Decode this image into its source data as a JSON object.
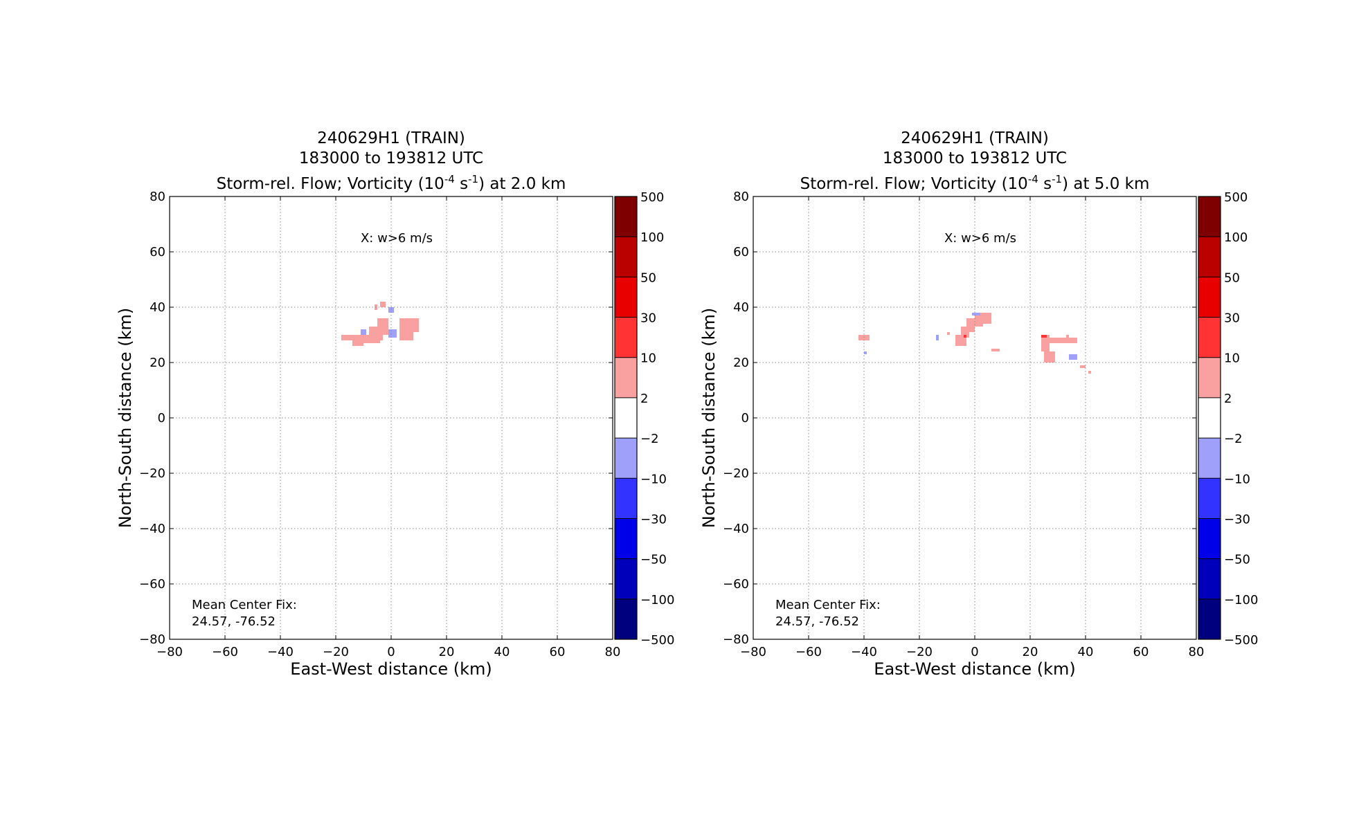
{
  "chart_data": [
    {
      "type": "heatmap",
      "title_lines": [
        "240629H1 (TRAIN)",
        "183000 to 193812 UTC"
      ],
      "title_line3": {
        "pre": "Storm-rel. Flow; Vorticity (10",
        "exp1": "-4",
        "mid": " s",
        "exp2": "-1",
        "post": ") at 2.0 km"
      },
      "xlabel": "East-West distance (km)",
      "ylabel": "North-South distance (km)",
      "xlim": [
        -80,
        80
      ],
      "ylim": [
        -80,
        80
      ],
      "xticks": [
        -80,
        -60,
        -40,
        -20,
        0,
        20,
        40,
        60,
        80
      ],
      "yticks": [
        -80,
        -60,
        -40,
        -20,
        0,
        20,
        40,
        60,
        80
      ],
      "xtick_labels": [
        "−80",
        "−60",
        "−40",
        "−20",
        "0",
        "20",
        "40",
        "60",
        "80"
      ],
      "ytick_labels": [
        "−80",
        "−60",
        "−40",
        "−20",
        "0",
        "20",
        "40",
        "60",
        "80"
      ],
      "grid": true,
      "annotation_top": "X: w>6 m/s",
      "annotation_bottom": [
        "Mean Center Fix:",
        "24.57, -76.52"
      ],
      "regions": [
        {
          "level": "2 to 10",
          "color": "#f9a0a0",
          "cells": [
            [
              -18,
              28,
              6,
              2
            ],
            [
              -14,
              27,
              10,
              3
            ],
            [
              -8,
              28,
              5,
              5
            ],
            [
              -5,
              30,
              4,
              6
            ],
            [
              3,
              28,
              5,
              3
            ],
            [
              3,
              31,
              7,
              5
            ],
            [
              -14,
              26,
              4,
              2
            ],
            [
              -4,
              40,
              2,
              2
            ],
            [
              -6,
              39,
              1,
              2
            ]
          ]
        },
        {
          "level": "-2 to -10",
          "color": "#9fa0fa",
          "cells": [
            [
              -1,
              29,
              3,
              3
            ],
            [
              -11,
              30,
              2,
              2
            ],
            [
              -1,
              38,
              2,
              2
            ]
          ]
        }
      ]
    },
    {
      "type": "heatmap",
      "title_lines": [
        "240629H1 (TRAIN)",
        "183000 to 193812 UTC"
      ],
      "title_line3": {
        "pre": "Storm-rel. Flow; Vorticity (10",
        "exp1": "-4",
        "mid": " s",
        "exp2": "-1",
        "post": ") at 5.0 km"
      },
      "xlabel": "East-West distance (km)",
      "ylabel": "North-South distance (km)",
      "xlim": [
        -80,
        80
      ],
      "ylim": [
        -80,
        80
      ],
      "xticks": [
        -80,
        -60,
        -40,
        -20,
        0,
        20,
        40,
        60,
        80
      ],
      "yticks": [
        -80,
        -60,
        -40,
        -20,
        0,
        20,
        40,
        60,
        80
      ],
      "xtick_labels": [
        "−80",
        "−60",
        "−40",
        "−20",
        "0",
        "20",
        "40",
        "60",
        "80"
      ],
      "ytick_labels": [
        "−80",
        "−60",
        "−40",
        "−20",
        "0",
        "20",
        "40",
        "60",
        "80"
      ],
      "grid": true,
      "annotation_top": "X: w>6 m/s",
      "annotation_bottom": [
        "Mean Center Fix:",
        "24.57, -76.52"
      ],
      "regions": [
        {
          "level": "2 to 10",
          "color": "#f9a0a0",
          "cells": [
            [
              -42,
              28,
              4,
              2
            ],
            [
              -7,
              26,
              4,
              4
            ],
            [
              -5,
              29,
              3,
              4
            ],
            [
              -3,
              31,
              3,
              5
            ],
            [
              0,
              33,
              3,
              4
            ],
            [
              2,
              34,
              4,
              4
            ],
            [
              6,
              24,
              3,
              1
            ],
            [
              24,
              24,
              3,
              6
            ],
            [
              25,
              20,
              4,
              4
            ],
            [
              27,
              27,
              6,
              2
            ],
            [
              32,
              27,
              5,
              2
            ],
            [
              33,
              29,
              1,
              1
            ],
            [
              38,
              18,
              2,
              1
            ],
            [
              41,
              16,
              1,
              1
            ],
            [
              -10,
              30,
              1,
              1
            ]
          ]
        },
        {
          "level": "10 to 30",
          "color": "#ff3333",
          "cells": [
            [
              -4,
              29,
              1,
              1
            ],
            [
              24,
              29,
              2,
              1
            ]
          ]
        },
        {
          "level": "-2 to -10",
          "color": "#9fa0fa",
          "cells": [
            [
              -14,
              28,
              1,
              2
            ],
            [
              34,
              21,
              3,
              2
            ],
            [
              -1,
              37,
              3,
              1
            ],
            [
              -40,
              23,
              1,
              1
            ]
          ]
        }
      ]
    }
  ],
  "colorbar": {
    "levels": [
      "500",
      "100",
      "50",
      "30",
      "10",
      "2",
      "−2",
      "−10",
      "−30",
      "−50",
      "−100",
      "−500"
    ],
    "colors": [
      "#7f0000",
      "#bb0000",
      "#e80000",
      "#ff3333",
      "#f9a0a0",
      "#ffffff",
      "#9fa0fa",
      "#3333ff",
      "#0000e8",
      "#0000bb",
      "#00007f"
    ]
  }
}
